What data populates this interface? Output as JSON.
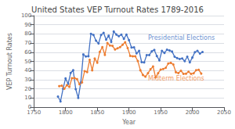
{
  "chart_data": {
    "type": "line",
    "title": "United States VEP Turnout Rates 1789-2016",
    "xlabel": "Year",
    "ylabel": "VEP Turnout Rates",
    "xlim": [
      1750,
      2050
    ],
    "ylim": [
      0,
      100
    ],
    "xticks": [
      1750,
      1800,
      1850,
      1900,
      1950,
      2000,
      2050
    ],
    "yticks": [
      0,
      10,
      20,
      30,
      40,
      50,
      60,
      70,
      80,
      90,
      100
    ],
    "grid": true,
    "series": [
      {
        "color": "#4472C4",
        "marker": "circle",
        "x": [
          1788,
          1792,
          1796,
          1800,
          1804,
          1808,
          1812,
          1816,
          1820,
          1824,
          1828,
          1832,
          1836,
          1840,
          1844,
          1848,
          1852,
          1856,
          1860,
          1864,
          1868,
          1872,
          1876,
          1880,
          1884,
          1888,
          1892,
          1896,
          1900,
          1904,
          1908,
          1912,
          1916,
          1920,
          1924,
          1928,
          1932,
          1936,
          1940,
          1944,
          1948,
          1952,
          1956,
          1960,
          1964,
          1968,
          1972,
          1976,
          1980,
          1984,
          1988,
          1992,
          1996,
          2000,
          2004,
          2008,
          2012,
          2016
        ],
        "values": [
          11.6,
          6.3,
          20.1,
          31.5,
          25.4,
          37.4,
          40.4,
          19.7,
          10.1,
          26.9,
          57.6,
          55.4,
          55.7,
          80.2,
          78.9,
          72.7,
          69.6,
          78.9,
          81.2,
          73.8,
          78.1,
          71.3,
          82.6,
          79.4,
          77.5,
          79.3,
          74.7,
          79.3,
          73.2,
          65.2,
          65.4,
          58.8,
          61.6,
          49.2,
          48.9,
          56.9,
          56.9,
          61.0,
          62.5,
          55.9,
          51.1,
          61.6,
          59.3,
          62.8,
          61.9,
          60.8,
          55.2,
          53.6,
          52.6,
          53.3,
          50.3,
          55.2,
          49.0,
          54.2,
          60.1,
          61.6,
          58.6,
          60.2
        ]
      },
      {
        "color": "#ED7D31",
        "marker": "circle",
        "x": [
          1790,
          1794,
          1798,
          1802,
          1806,
          1810,
          1814,
          1818,
          1822,
          1826,
          1830,
          1834,
          1838,
          1842,
          1846,
          1850,
          1854,
          1858,
          1862,
          1866,
          1870,
          1874,
          1878,
          1882,
          1886,
          1890,
          1894,
          1898,
          1902,
          1906,
          1910,
          1914,
          1918,
          1922,
          1926,
          1930,
          1934,
          1938,
          1942,
          1946,
          1950,
          1954,
          1958,
          1962,
          1966,
          1970,
          1974,
          1978,
          1982,
          1986,
          1990,
          1994,
          1998,
          2002,
          2006,
          2010,
          2014
        ],
        "values": [
          23.0,
          23.5,
          20.1,
          24.0,
          22.2,
          31.7,
          31.8,
          30.7,
          25.1,
          27.0,
          39.4,
          38.4,
          51.7,
          40.3,
          53.1,
          48.6,
          60.4,
          65.6,
          57.1,
          70.1,
          67.4,
          67.0,
          63.0,
          64.3,
          65.6,
          68.2,
          71.0,
          64.5,
          56.1,
          55.6,
          55.6,
          50.4,
          40.3,
          35.2,
          33.3,
          37.1,
          41.4,
          44.5,
          32.6,
          37.1,
          41.1,
          41.7,
          43.0,
          47.7,
          48.4,
          46.6,
          38.2,
          37.2,
          39.8,
          36.4,
          36.5,
          38.7,
          36.4,
          37.0,
          40.4,
          40.9,
          36.7
        ]
      }
    ],
    "annotations": [
      {
        "text": "Presidential Elections",
        "x": 1930,
        "y": 72,
        "color": "#4472C4"
      },
      {
        "text": "Midterm Elections",
        "x": 1930,
        "y": 28,
        "color": "#ED7D31"
      }
    ]
  }
}
